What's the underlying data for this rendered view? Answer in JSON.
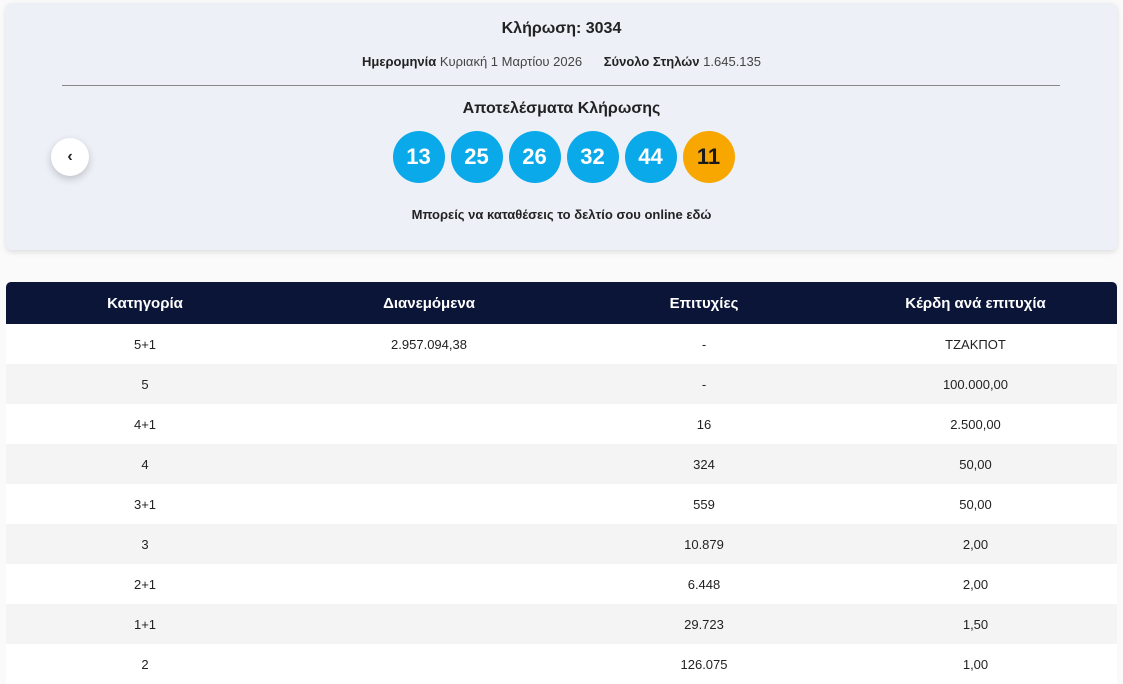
{
  "header": {
    "title": "Κλήρωση: 3034",
    "date_label": "Ημερομηνία",
    "date_value": "Κυριακή 1 Μαρτίου 2026",
    "columns_label": "Σύνολο Στηλών",
    "columns_value": "1.645.135",
    "results_title": "Αποτελέσματα Κλήρωσης",
    "numbers": [
      "13",
      "25",
      "26",
      "32",
      "44"
    ],
    "bonus": "11",
    "link": "Μπορείς να καταθέσεις το δελτίο σου online εδώ"
  },
  "table": {
    "columns": [
      "Κατηγορία",
      "Διανεμόμενα",
      "Επιτυχίες",
      "Κέρδη ανά επιτυχία"
    ],
    "rows": [
      {
        "category": "5+1",
        "distributed": "2.957.094,38",
        "winners": "-",
        "prize": "ΤΖΑΚΠΟΤ"
      },
      {
        "category": "5",
        "winners": "-",
        "prize": "100.000,00"
      },
      {
        "category": "4+1",
        "winners": "16",
        "prize": "2.500,00"
      },
      {
        "category": "4",
        "winners": "324",
        "prize": "50,00"
      },
      {
        "category": "3+1",
        "winners": "559",
        "prize": "50,00"
      },
      {
        "category": "3",
        "winners": "10.879",
        "prize": "2,00"
      },
      {
        "category": "2+1",
        "winners": "6.448",
        "prize": "2,00"
      },
      {
        "category": "1+1",
        "winners": "29.723",
        "prize": "1,50"
      },
      {
        "category": "2",
        "winners": "126.075",
        "prize": "1,00"
      }
    ]
  }
}
